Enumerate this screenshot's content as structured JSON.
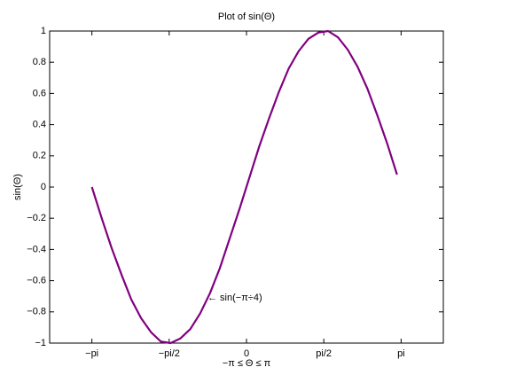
{
  "chart_data": {
    "type": "line",
    "title": "Plot of sin(Θ)",
    "xlabel": "−π ≤ Θ ≤ π",
    "ylabel": "sin(Θ)",
    "annotation": "← sin(−π÷4)",
    "x": [
      -3.1416,
      -2.9416,
      -2.7416,
      -2.5416,
      -2.3416,
      -2.1416,
      -1.9416,
      -1.7416,
      -1.5416,
      -1.3416,
      -1.1416,
      -0.9416,
      -0.7416,
      -0.5416,
      -0.3416,
      -0.1416,
      0.0584,
      0.2584,
      0.4584,
      0.6584,
      0.8584,
      1.0584,
      1.2584,
      1.4584,
      1.6584,
      1.8584,
      2.0584,
      2.2584,
      2.4584,
      2.6584,
      2.8584,
      3.0584
    ],
    "series": [
      {
        "color": "#800080",
        "values": [
          0,
          -0.2,
          -0.39,
          -0.56,
          -0.72,
          -0.84,
          -0.93,
          -0.99,
          -1.0,
          -0.97,
          -0.91,
          -0.81,
          -0.68,
          -0.52,
          -0.33,
          -0.14,
          0.06,
          0.26,
          0.44,
          0.61,
          0.76,
          0.87,
          0.95,
          0.99,
          1.0,
          0.96,
          0.88,
          0.77,
          0.63,
          0.46,
          0.28,
          0.08
        ]
      }
    ],
    "xlim": [
      -4,
      4
    ],
    "xticks": [
      {
        "value": -3.141592653589793,
        "label": "−pi"
      },
      {
        "value": -1.5707963267948966,
        "label": "−pi/2"
      },
      0,
      {
        "value": 1.5707963267948966,
        "label": "pi/2"
      },
      {
        "value": 3.141592653589793,
        "label": "pi"
      }
    ],
    "ylim": [
      -1,
      1
    ],
    "yticks": [
      {
        "value": -1,
        "label": "−1"
      },
      {
        "value": -0.8,
        "label": "−0.8"
      },
      {
        "value": -0.6,
        "label": "−0.6"
      },
      {
        "value": -0.4,
        "label": "−0.4"
      },
      {
        "value": -0.2,
        "label": "−0.2"
      },
      0,
      0.2,
      0.4,
      0.6,
      0.8,
      1
    ],
    "grid": false
  }
}
